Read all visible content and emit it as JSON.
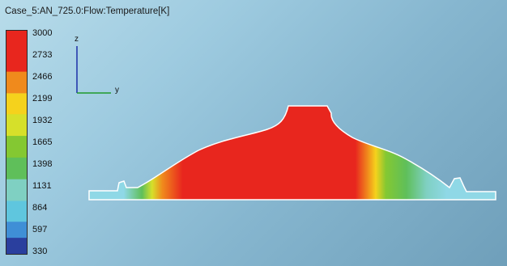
{
  "viewer": {
    "title": "Case_5:AN_725.0:Flow:Temperature[K]"
  },
  "legend": {
    "ticks": [
      "3000",
      "2733",
      "2466",
      "2199",
      "1932",
      "1665",
      "1398",
      "1131",
      "864",
      "597",
      "330"
    ],
    "colors": [
      "#2a3f9e",
      "#2e62b8",
      "#3f8fd6",
      "#5fc6de",
      "#7fd0c2",
      "#5fbf5a",
      "#84c832",
      "#d6e02a",
      "#f5d21c",
      "#f08a1c",
      "#e8261e"
    ]
  },
  "axes": {
    "z_label": "z",
    "y_label": "y"
  }
}
